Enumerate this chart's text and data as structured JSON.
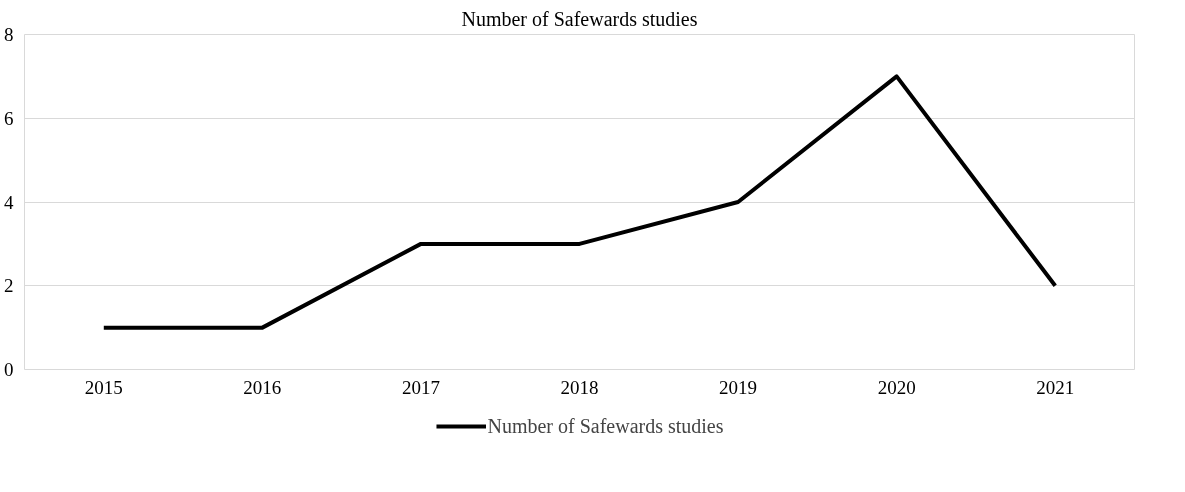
{
  "chart_data": {
    "type": "line",
    "title": "Number of Safewards studies",
    "categories": [
      "2015",
      "2016",
      "2017",
      "2018",
      "2019",
      "2020",
      "2021"
    ],
    "series": [
      {
        "name": "Number of Safewards studies",
        "color": "#000000",
        "values": [
          1,
          1,
          3,
          3,
          4,
          7,
          2
        ]
      }
    ],
    "ylim": [
      0,
      8
    ],
    "yticks": [
      0,
      2,
      4,
      6,
      8
    ],
    "grid": "y",
    "legend": "bottom",
    "marker": "none",
    "line_style": "solid"
  }
}
